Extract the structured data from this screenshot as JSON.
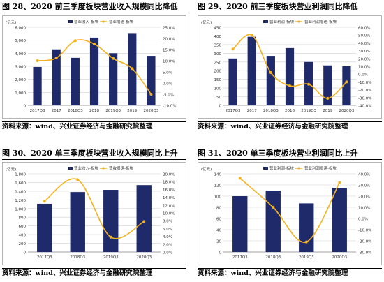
{
  "colors": {
    "bar": "#1f2a6b",
    "line": "#f5b21e",
    "grid": "#d0d0d0",
    "border": "#b5b5b5"
  },
  "charts": [
    {
      "title": "图 28、2020 前三季度板块营业收入规模同比降低",
      "source": "资料来源：wind、兴业证券经济与金融研究院整理",
      "left_unit": "(亿元)",
      "legend": [
        "营业收入-板块",
        "营业增速-板块"
      ],
      "left_ticks": [
        "6,000",
        "5,000",
        "4,000",
        "3,000",
        "2,000",
        "1,000",
        "0"
      ],
      "right_ticks": [
        "25.0%",
        "20.0%",
        "15.0%",
        "10.0%",
        "5.0%",
        "0.0%",
        "-5.0%",
        "-10.0%"
      ]
    },
    {
      "title": "图 29、2020 前三季度板块营业利润同比降低",
      "source": "资料来源：wind、兴业证券经济与金融研究院整理",
      "left_unit": "(亿元)",
      "legend": [
        "营业利润-板块",
        "营业利润增速-板块"
      ],
      "left_ticks": [
        "450",
        "400",
        "350",
        "300",
        "250",
        "200",
        "150",
        "100",
        "50",
        "0"
      ],
      "right_ticks": [
        "60.0%",
        "50.0%",
        "40.0%",
        "30.0%",
        "20.0%",
        "10.0%",
        "0.0%",
        "-10.0%",
        "-20.0%",
        "-30.0%",
        "-40.0%"
      ]
    },
    {
      "title": "图 30、2020 单三季度板块营业收入规模同比上升",
      "source": "资料来源：wind、兴业证券经济与金融研究院整理",
      "left_unit": "(亿元)",
      "legend": [
        "营业收入-板块",
        "营收增速-板块"
      ],
      "left_ticks": [
        "1,800",
        "1,600",
        "1,400",
        "1,200",
        "1,000",
        "800",
        "600",
        "400",
        "200",
        "0"
      ],
      "right_ticks": [
        "20.0%",
        "18.0%",
        "16.0%",
        "14.0%",
        "12.0%",
        "10.0%",
        "8.0%",
        "6.0%",
        "4.0%",
        "2.0%",
        "0.0%"
      ]
    },
    {
      "title": "图 31、2020 单三季度板块营业利润同比上升",
      "source": "资料来源：wind、兴业证券经济与金融研究院整理",
      "left_unit": "(亿元)",
      "legend": [
        "营业利润-板块",
        "营业利润增速-板块"
      ],
      "left_ticks": [
        "140",
        "120",
        "100",
        "80",
        "60",
        "40",
        "20",
        "0"
      ],
      "right_ticks": [
        "40.0%",
        "30.0%",
        "20.0%",
        "10.0%",
        "0.0%",
        "-10.0%",
        "-20.0%",
        "-30.0%"
      ]
    }
  ],
  "chart_data": [
    {
      "type": "bar",
      "title": "图 28、2020 前三季度板块营业收入规模同比降低",
      "categories": [
        "2017Q3",
        "2017",
        "2018Q3",
        "2018",
        "2019Q3",
        "2019",
        "2020Q3"
      ],
      "ylim": [
        0,
        6000
      ],
      "y2lim": [
        -10,
        25
      ],
      "series": [
        {
          "name": "营业收入-板块",
          "axis": "left",
          "values": [
            2950,
            4300,
            3650,
            5200,
            4000,
            5550,
            3800
          ]
        },
        {
          "name": "营业增速-板块",
          "axis": "right",
          "unit": "%",
          "values": [
            10.0,
            11.2,
            19.0,
            17.5,
            11.0,
            6.5,
            -5.0
          ]
        }
      ]
    },
    {
      "type": "bar",
      "title": "图 29、2020 前三季度板块营业利润同比降低",
      "categories": [
        "2017Q3",
        "2017",
        "2018Q3",
        "2018",
        "2019Q3",
        "2019",
        "2020Q3"
      ],
      "ylim": [
        0,
        450
      ],
      "y2lim": [
        -40,
        60
      ],
      "series": [
        {
          "name": "营业利润-板块",
          "axis": "left",
          "values": [
            270,
            395,
            285,
            330,
            250,
            230,
            225
          ]
        },
        {
          "name": "营业利润增速-板块",
          "axis": "right",
          "unit": "%",
          "values": [
            32.0,
            50.0,
            2.0,
            -15.0,
            -13.0,
            -31.0,
            -10.0
          ]
        }
      ]
    },
    {
      "type": "bar",
      "title": "图 30、2020 单三季度板块营业收入规模同比上升",
      "categories": [
        "2017Q3",
        "2018Q3",
        "2019Q3",
        "2020Q3"
      ],
      "ylim": [
        0,
        1800
      ],
      "y2lim": [
        0,
        20
      ],
      "series": [
        {
          "name": "营业收入-板块",
          "axis": "left",
          "values": [
            1110,
            1380,
            1430,
            1540
          ]
        },
        {
          "name": "营收增速-板块",
          "axis": "right",
          "unit": "%",
          "values": [
            13.0,
            18.5,
            3.8,
            7.8
          ]
        }
      ]
    },
    {
      "type": "bar",
      "title": "图 31、2020 单三季度板块营业利润同比上升",
      "categories": [
        "2017Q3",
        "2018Q3",
        "2019Q3",
        "2020Q3"
      ],
      "ylim": [
        0,
        140
      ],
      "y2lim": [
        -30,
        40
      ],
      "series": [
        {
          "name": "营业利润-板块",
          "axis": "left",
          "values": [
            100,
            110,
            87,
            115
          ]
        },
        {
          "name": "营业利润增速-板块",
          "axis": "right",
          "unit": "%",
          "values": [
            36.0,
            10.0,
            -21.0,
            32.0
          ]
        }
      ]
    }
  ]
}
